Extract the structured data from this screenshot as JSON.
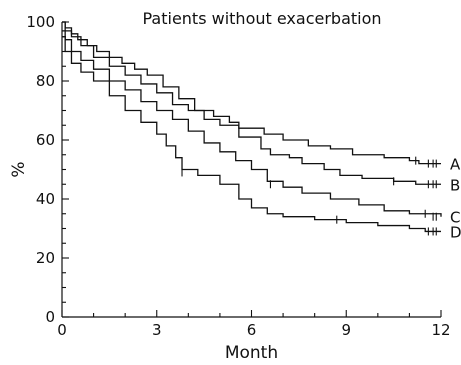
{
  "chart_data": {
    "type": "line",
    "title": "Patients without exacerbation",
    "xlabel": "Month",
    "ylabel": "%",
    "xlim": [
      0,
      12
    ],
    "ylim": [
      0,
      100
    ],
    "x_ticks": [
      0,
      3,
      6,
      9,
      12
    ],
    "y_ticks": [
      0,
      20,
      40,
      60,
      80,
      100
    ],
    "grid": false,
    "legend": "none",
    "series": [
      {
        "name": "A",
        "points": [
          [
            0,
            100
          ],
          [
            0.1,
            98
          ],
          [
            0.3,
            96
          ],
          [
            0.5,
            94
          ],
          [
            0.8,
            92
          ],
          [
            1.1,
            90
          ],
          [
            1.5,
            88
          ],
          [
            1.9,
            86
          ],
          [
            2.3,
            84
          ],
          [
            2.7,
            82
          ],
          [
            3.2,
            78
          ],
          [
            3.7,
            74
          ],
          [
            4.2,
            70
          ],
          [
            4.8,
            68
          ],
          [
            5.3,
            66
          ],
          [
            5.6,
            64
          ],
          [
            6.4,
            62
          ],
          [
            7.0,
            60
          ],
          [
            7.8,
            58
          ],
          [
            8.5,
            57
          ],
          [
            9.2,
            55
          ],
          [
            10.2,
            54
          ],
          [
            11.0,
            53
          ],
          [
            11.3,
            52
          ],
          [
            12,
            52
          ]
        ],
        "censors": [
          [
            11.2,
            53
          ],
          [
            11.6,
            52
          ],
          [
            11.75,
            52
          ],
          [
            11.85,
            52
          ]
        ]
      },
      {
        "name": "B",
        "points": [
          [
            0,
            100
          ],
          [
            0.1,
            97
          ],
          [
            0.3,
            95
          ],
          [
            0.6,
            92
          ],
          [
            1.0,
            88
          ],
          [
            1.5,
            85
          ],
          [
            2.0,
            82
          ],
          [
            2.5,
            79
          ],
          [
            3.0,
            76
          ],
          [
            3.5,
            72
          ],
          [
            4.0,
            70
          ],
          [
            4.5,
            67
          ],
          [
            5.0,
            65
          ],
          [
            5.6,
            61
          ],
          [
            6.3,
            57
          ],
          [
            6.6,
            55
          ],
          [
            7.2,
            54
          ],
          [
            7.6,
            52
          ],
          [
            8.3,
            50
          ],
          [
            8.8,
            48
          ],
          [
            9.5,
            47
          ],
          [
            10.5,
            46
          ],
          [
            11.2,
            45
          ],
          [
            12,
            45
          ]
        ],
        "censors": [
          [
            10.5,
            46
          ],
          [
            11.6,
            45
          ],
          [
            11.75,
            45
          ],
          [
            11.85,
            45
          ]
        ]
      },
      {
        "name": "C",
        "points": [
          [
            0,
            97
          ],
          [
            0.1,
            94
          ],
          [
            0.3,
            90
          ],
          [
            0.6,
            87
          ],
          [
            1.0,
            84
          ],
          [
            1.5,
            80
          ],
          [
            2.0,
            77
          ],
          [
            2.5,
            73
          ],
          [
            3.0,
            70
          ],
          [
            3.5,
            67
          ],
          [
            4.0,
            63
          ],
          [
            4.5,
            59
          ],
          [
            5.0,
            56
          ],
          [
            5.5,
            53
          ],
          [
            6.0,
            50
          ],
          [
            6.5,
            46
          ],
          [
            7.0,
            44
          ],
          [
            7.6,
            42
          ],
          [
            8.5,
            40
          ],
          [
            9.4,
            38
          ],
          [
            10.2,
            36
          ],
          [
            11.0,
            35
          ],
          [
            12,
            34
          ]
        ],
        "censors": [
          [
            6.6,
            45
          ],
          [
            11.5,
            35
          ],
          [
            11.75,
            34
          ],
          [
            11.85,
            34
          ]
        ]
      },
      {
        "name": "D",
        "points": [
          [
            0,
            95
          ],
          [
            0.1,
            90
          ],
          [
            0.3,
            86
          ],
          [
            0.6,
            83
          ],
          [
            1.0,
            80
          ],
          [
            1.5,
            75
          ],
          [
            2.0,
            70
          ],
          [
            2.5,
            66
          ],
          [
            3.0,
            62
          ],
          [
            3.3,
            58
          ],
          [
            3.6,
            54
          ],
          [
            3.8,
            50
          ],
          [
            4.3,
            48
          ],
          [
            5.0,
            45
          ],
          [
            5.6,
            40
          ],
          [
            6.0,
            37
          ],
          [
            6.5,
            35
          ],
          [
            7.0,
            34
          ],
          [
            8.0,
            33
          ],
          [
            9.0,
            32
          ],
          [
            10.0,
            31
          ],
          [
            11.0,
            30
          ],
          [
            11.5,
            29
          ],
          [
            12,
            29
          ]
        ],
        "censors": [
          [
            3.8,
            49
          ],
          [
            8.7,
            33
          ],
          [
            11.6,
            29
          ],
          [
            11.75,
            29
          ],
          [
            11.85,
            29
          ]
        ]
      }
    ]
  }
}
